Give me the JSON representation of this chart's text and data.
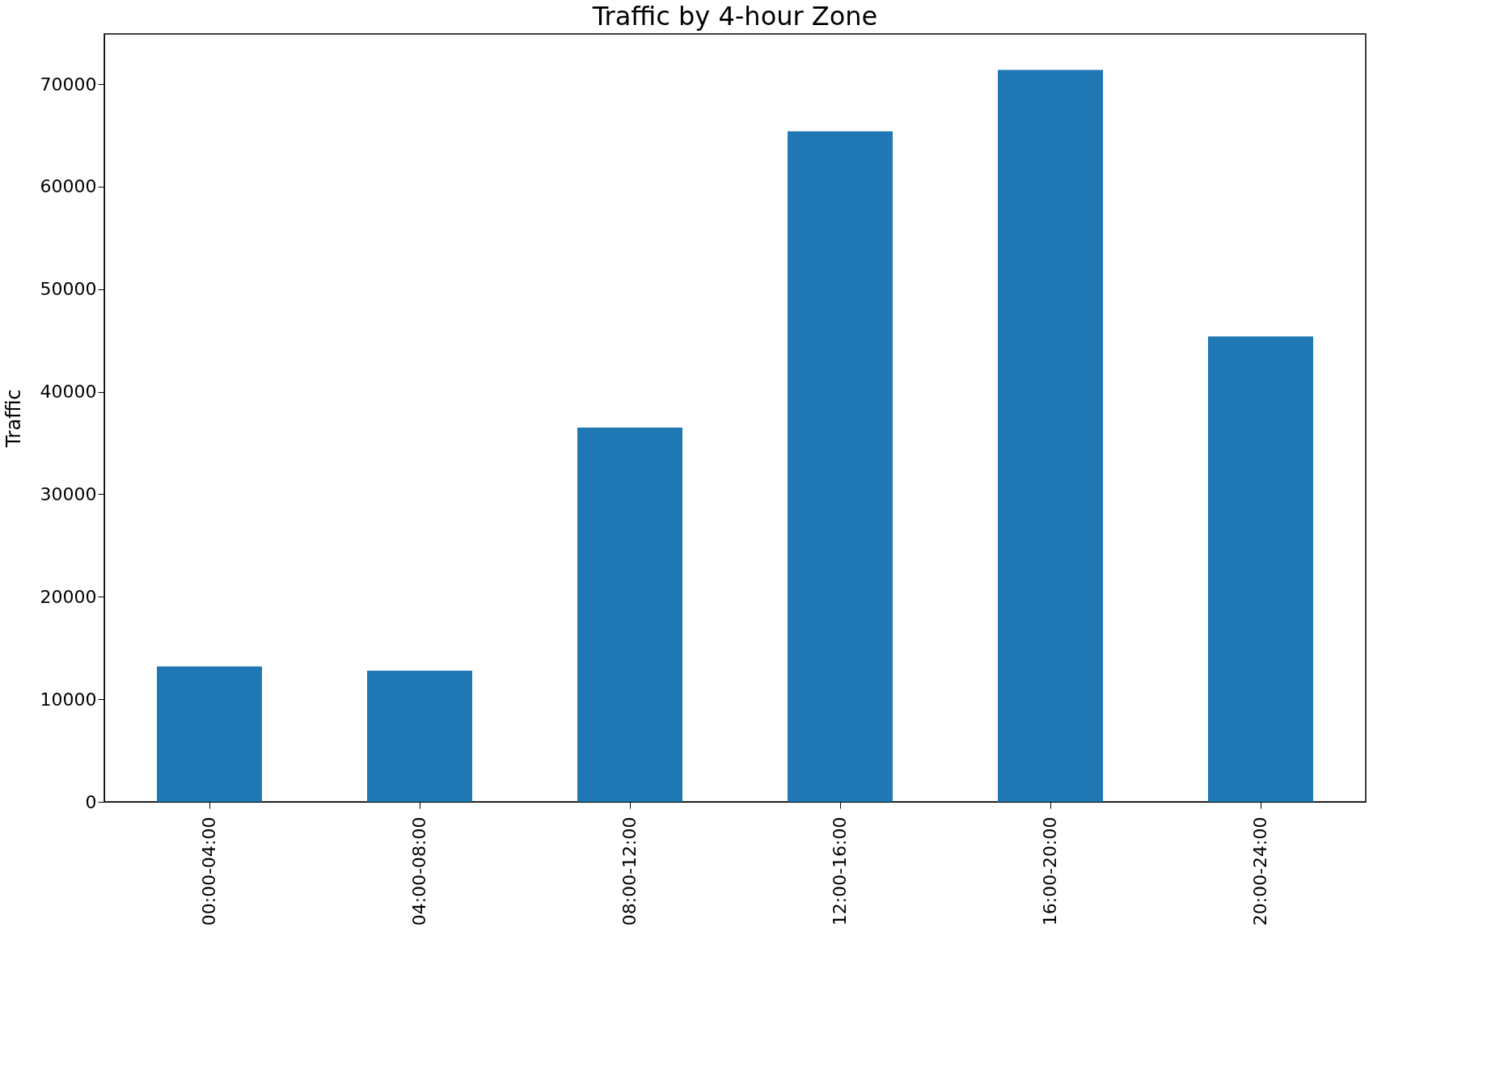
{
  "chart_data": {
    "type": "bar",
    "title": "Traffic by 4-hour Zone",
    "ylabel": "Traffic",
    "categories": [
      "00:00-04:00",
      "04:00-08:00",
      "08:00-12:00",
      "12:00-16:00",
      "16:00-20:00",
      "20:00-24:00"
    ],
    "values": [
      13200,
      12800,
      36500,
      65400,
      71400,
      45400
    ],
    "color": "#1f77b4",
    "ylim": [
      0,
      74900
    ],
    "yticks": [
      0,
      10000,
      20000,
      30000,
      40000,
      50000,
      60000,
      70000
    ],
    "grid": false
  }
}
